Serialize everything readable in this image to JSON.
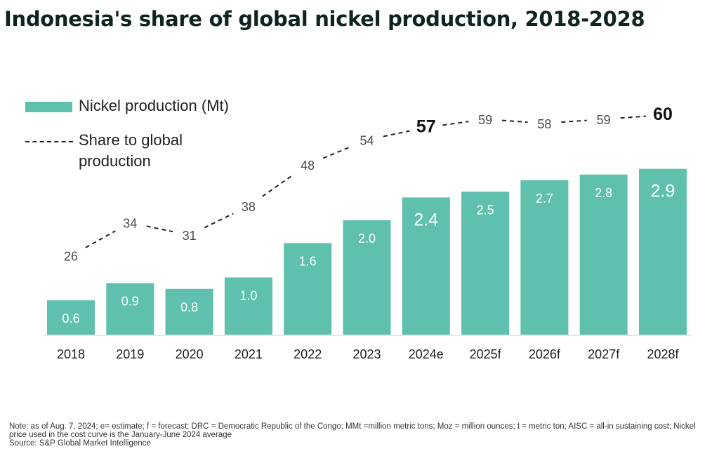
{
  "title": "Indonesia's share of global nickel production, 2018-2028",
  "legend": {
    "bar_label": "Nickel production (Mt)",
    "line_label": "Share to global production"
  },
  "colors": {
    "bar": "#5fc0ad",
    "bar_label": "#ffffff",
    "line": "#222222",
    "title": "#0f2321"
  },
  "chart_data": {
    "type": "bar",
    "categories": [
      "2018",
      "2019",
      "2020",
      "2021",
      "2022",
      "2023",
      "2024e",
      "2025f",
      "2026f",
      "2027f",
      "2028f"
    ],
    "series": [
      {
        "name": "Nickel production (Mt)",
        "type": "bar",
        "values": [
          0.6,
          0.9,
          0.8,
          1.0,
          1.6,
          2.0,
          2.4,
          2.5,
          2.7,
          2.8,
          2.9
        ],
        "labels": [
          "0.6",
          "0.9",
          "0.8",
          "1.0",
          "1.6",
          "2.0",
          "2.4",
          "2.5",
          "2.7",
          "2.8",
          "2.9"
        ]
      },
      {
        "name": "Share to global production",
        "type": "line",
        "style": "dashed",
        "values": [
          26,
          34,
          31,
          38,
          48,
          54,
          57,
          59,
          58,
          59,
          60
        ],
        "labels": [
          "26",
          "34",
          "31",
          "38",
          "48",
          "54",
          "57",
          "59",
          "58",
          "59",
          "60"
        ],
        "emphasized": [
          "2024e",
          "2028f"
        ]
      }
    ],
    "axes": {
      "grid": false,
      "y_axis_visible": false
    },
    "legend_position": "top-left"
  },
  "footer": {
    "note": "Note: as of Aug. 7, 2024; e= estimate; f = forecast; DRC = Democratic Republic of the Congo; MMt =million metric tons; Moz = million ounces; t = metric ton; AISC = all-in sustaining cost; Nickel price used in the cost curve is the January-June 2024 average",
    "source": "Source: S&P Global Market Intelligence"
  }
}
